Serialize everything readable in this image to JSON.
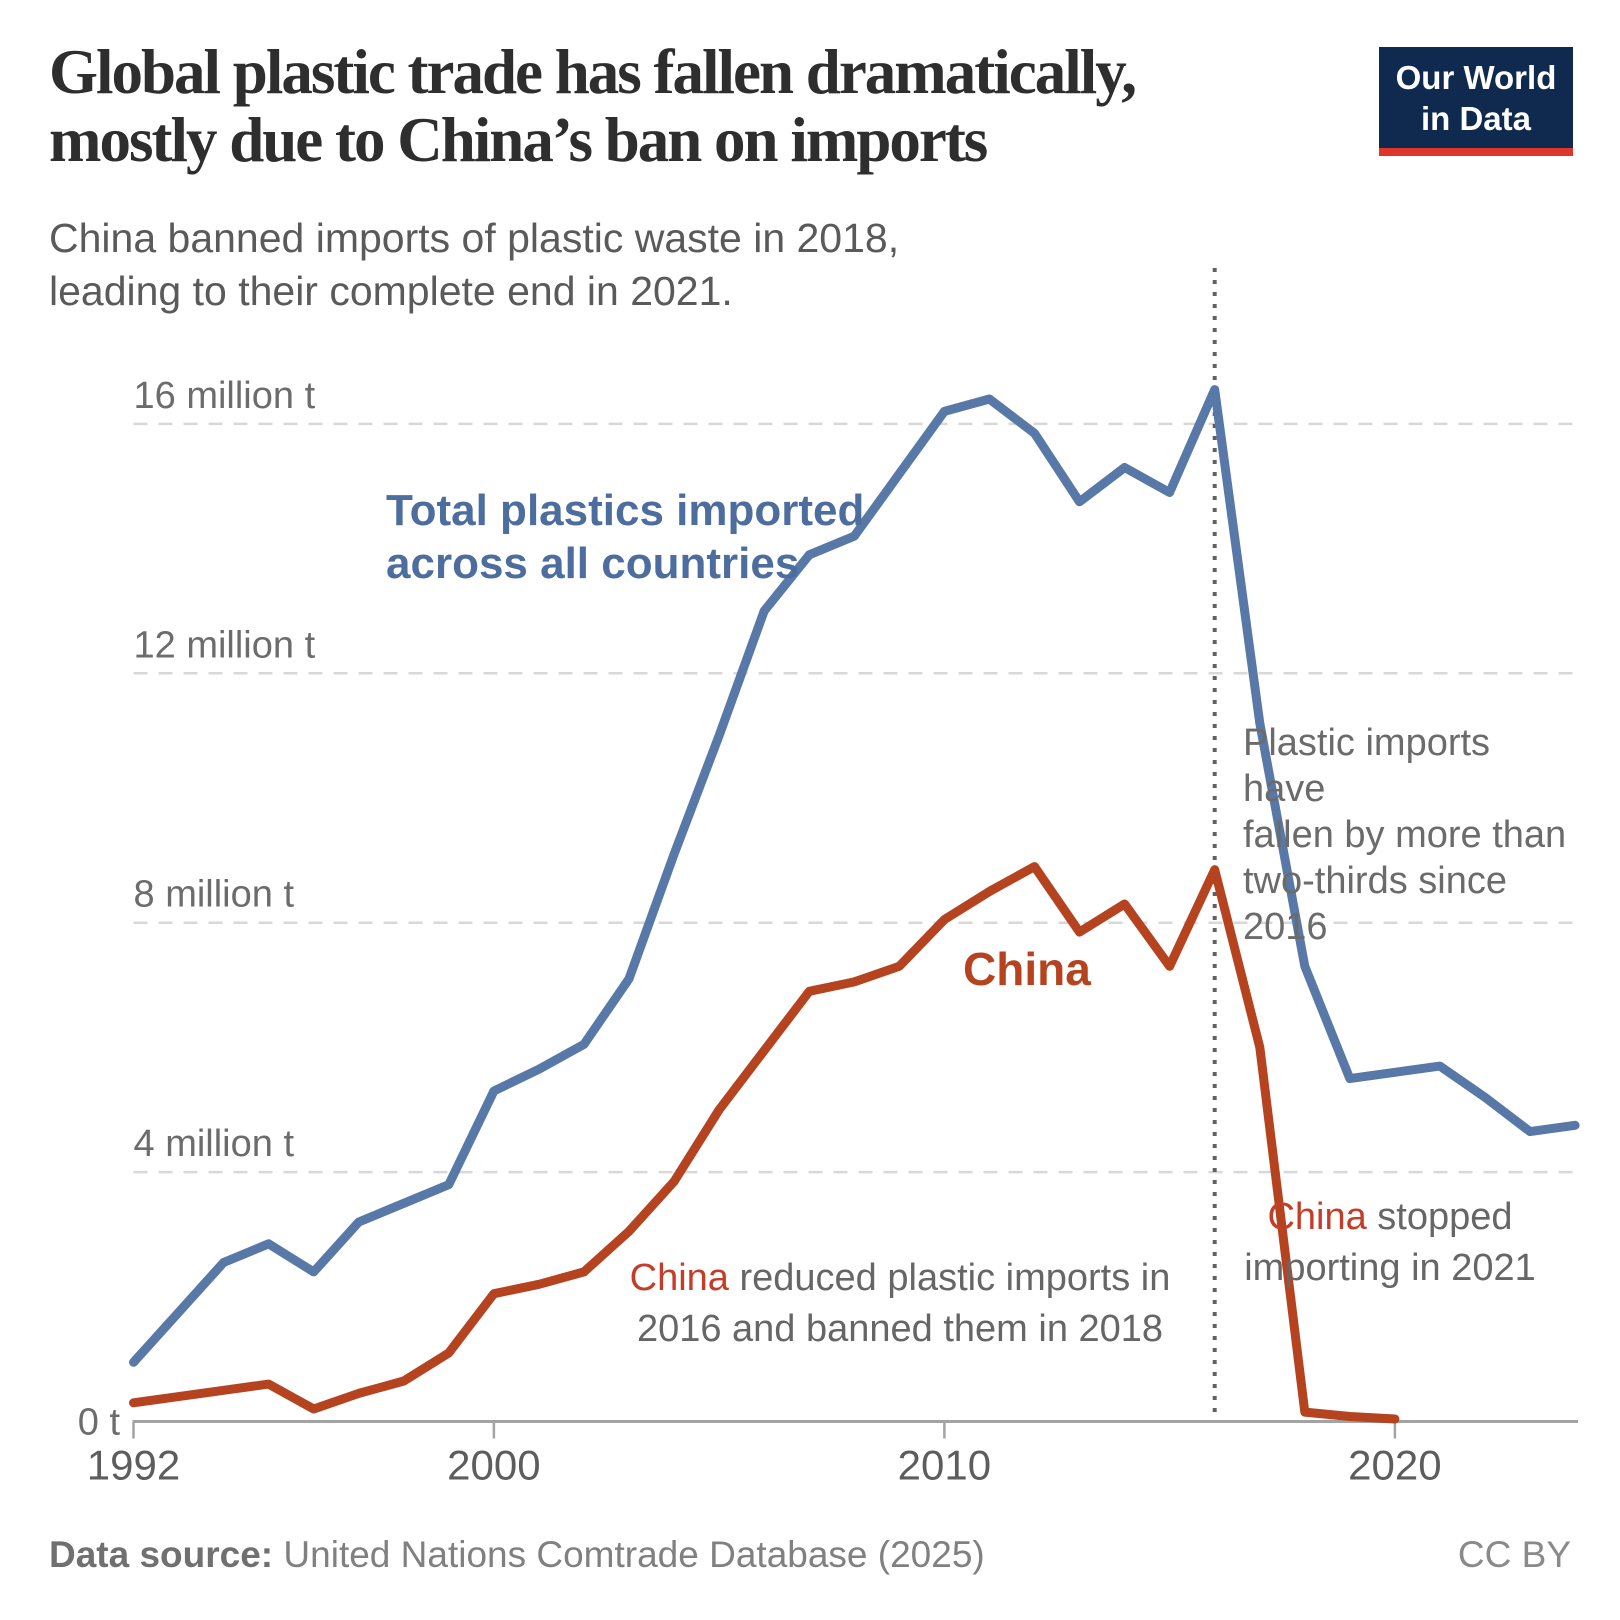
{
  "header": {
    "title_line1": "Global plastic trade has fallen dramatically,",
    "title_line2": "mostly due to China’s ban on imports",
    "subtitle_line1": "China banned imports of plastic waste in 2018,",
    "subtitle_line2": "leading to their complete end in 2021.",
    "logo_line1": "Our World",
    "logo_line2": "in Data"
  },
  "annotations": {
    "series_label_line1": "Total plastics imported",
    "series_label_line2": "across all countries",
    "china_line_label": "China",
    "note_2016_line1": "Plastic imports have",
    "note_2016_line2": "fallen by more than",
    "note_2016_line3": "two-thirds since 2016",
    "note_ban_red": "China",
    "note_ban_rest": " reduced plastic imports in",
    "note_ban_line2": "2016 and banned them in 2018",
    "note_stop_red": "China",
    "note_stop_rest": " stopped",
    "note_stop_line2": "importing in 2021"
  },
  "footer": {
    "source_label": "Data source:",
    "source_text": " United Nations Comtrade Database (2025)",
    "license": "CC BY"
  },
  "colors": {
    "total_line": "#5878a8",
    "china_line": "#b5431f",
    "accent_red": "#c43d28",
    "logo_bg": "#0f2a4e",
    "logo_strip": "#e0352b",
    "gridline": "#d8d8d8",
    "axis": "#a3a3a3",
    "event_line": "#606060"
  },
  "chart_data": {
    "type": "line",
    "title": "Global plastic trade has fallen dramatically, mostly due to China's ban on imports",
    "xlabel": "",
    "ylabel": "million tonnes",
    "xlim": [
      1992,
      2024
    ],
    "ylim": [
      0,
      17
    ],
    "grid": "horizontal dashed",
    "event_line_year": 2016,
    "x": [
      1992,
      1993,
      1994,
      1995,
      1996,
      1997,
      1998,
      1999,
      2000,
      2001,
      2002,
      2003,
      2004,
      2005,
      2006,
      2007,
      2008,
      2009,
      2010,
      2011,
      2012,
      2013,
      2014,
      2015,
      2016,
      2017,
      2018,
      2019,
      2020,
      2021,
      2022,
      2023,
      2024
    ],
    "series": [
      {
        "name": "Total plastics imported across all countries",
        "color": "#5878a8",
        "values": [
          0.95,
          1.75,
          2.55,
          2.85,
          2.4,
          3.2,
          3.5,
          3.8,
          5.3,
          5.65,
          6.05,
          7.1,
          9.1,
          11.0,
          13.0,
          13.9,
          14.2,
          15.2,
          16.2,
          16.4,
          15.85,
          14.75,
          15.3,
          14.9,
          16.55,
          11.2,
          7.3,
          5.5,
          5.6,
          5.7,
          5.2,
          4.65,
          4.75
        ]
      },
      {
        "name": "China",
        "color": "#b5431f",
        "values": [
          0.3,
          0.4,
          0.5,
          0.6,
          0.2,
          0.45,
          0.65,
          1.1,
          2.05,
          2.2,
          2.4,
          3.05,
          3.85,
          5.0,
          5.95,
          6.9,
          7.05,
          7.3,
          8.05,
          8.5,
          8.9,
          7.85,
          8.3,
          7.3,
          8.85,
          6.0,
          0.15,
          0.08,
          0.04,
          null,
          null,
          null,
          null
        ]
      }
    ],
    "yticks": [
      {
        "value": 16,
        "label": "16 million t"
      },
      {
        "value": 12,
        "label": "12 million t"
      },
      {
        "value": 8,
        "label": "8 million t"
      },
      {
        "value": 4,
        "label": "4 million t"
      },
      {
        "value": 0,
        "label": "0 t"
      }
    ],
    "xticks": [
      1992,
      2000,
      2010,
      2020
    ]
  }
}
